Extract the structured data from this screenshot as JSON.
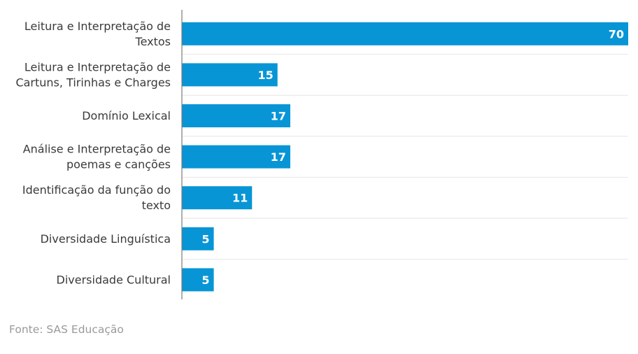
{
  "chart_data": {
    "type": "bar",
    "orientation": "horizontal",
    "categories": [
      [
        "Leitura e Interpretação de",
        "Textos"
      ],
      [
        "Leitura e Interpretação de",
        "Cartuns, Tirinhas e Charges"
      ],
      [
        "Domínio Lexical"
      ],
      [
        "Análise e Interpretação de",
        "poemas e canções"
      ],
      [
        "Identificação da função do",
        "texto"
      ],
      [
        "Diversidade Linguística"
      ],
      [
        "Diversidade Cultural"
      ]
    ],
    "values": [
      70,
      15,
      17,
      17,
      11,
      5,
      5
    ],
    "xlim": [
      0,
      70
    ],
    "bar_color": "#0795d5",
    "grid": true,
    "data_labels": true
  },
  "source": "Fonte: SAS Educação"
}
